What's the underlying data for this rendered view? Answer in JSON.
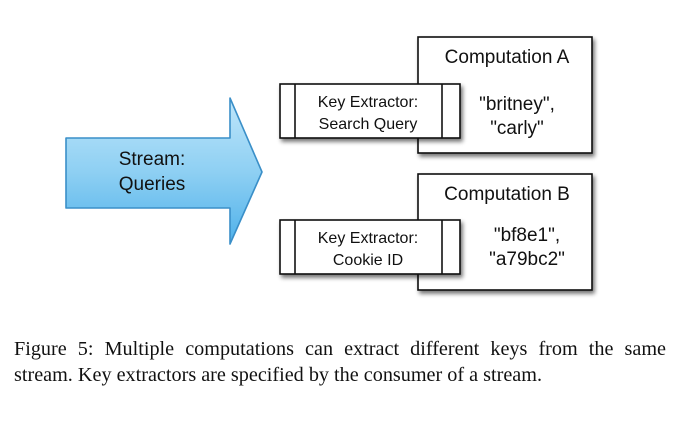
{
  "stream": {
    "label_line1": "Stream:",
    "label_line2": "Queries"
  },
  "computations": [
    {
      "title": "Computation A",
      "extractor_line1": "Key Extractor:",
      "extractor_line2": "Search Query",
      "keys_line1": "\"britney\",",
      "keys_line2": "\"carly\""
    },
    {
      "title": "Computation B",
      "extractor_line1": "Key Extractor:",
      "extractor_line2": "Cookie ID",
      "keys_line1": "\"bf8e1\",",
      "keys_line2": "\"a79bc2\""
    }
  ],
  "caption": "Figure 5: Multiple computations can extract different keys from the same stream. Key extractors are specified by the consumer of a stream.",
  "colors": {
    "arrow_fill_top": "#a9dcf7",
    "arrow_fill_bottom": "#56b6ec",
    "arrow_stroke": "#3a8fc8",
    "box_stroke": "#111111",
    "shadow": "#9a9a9a"
  }
}
